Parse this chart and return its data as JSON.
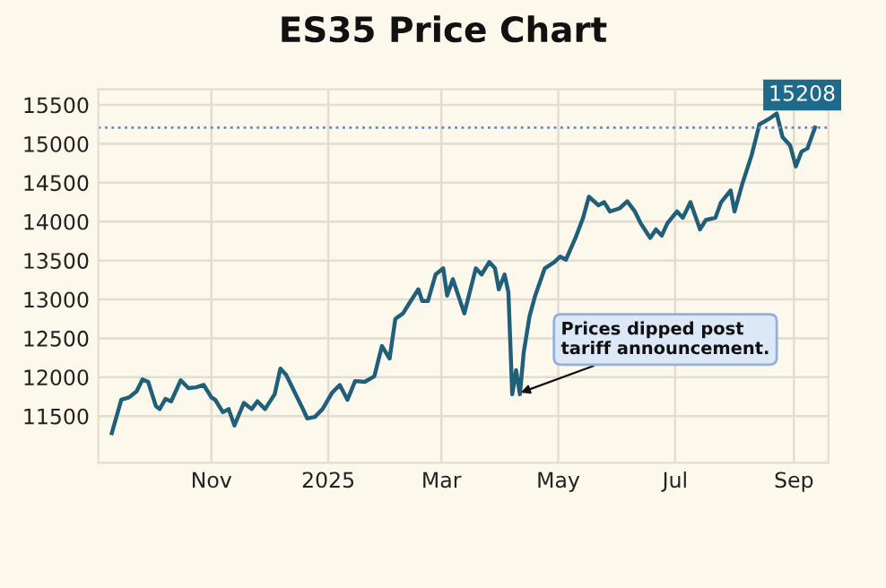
{
  "chart_data": {
    "type": "line",
    "title": "ES35 Price Chart",
    "x": [
      "2024-09-10",
      "2024-09-15",
      "2024-09-19",
      "2024-09-23",
      "2024-09-26",
      "2024-09-29",
      "2024-10-03",
      "2024-10-05",
      "2024-10-08",
      "2024-10-11",
      "2024-10-16",
      "2024-10-20",
      "2024-10-24",
      "2024-10-28",
      "2024-11-01",
      "2024-11-03",
      "2024-11-07",
      "2024-11-10",
      "2024-11-13",
      "2024-11-18",
      "2024-11-22",
      "2024-11-25",
      "2024-11-29",
      "2024-12-04",
      "2024-12-07",
      "2024-12-10",
      "2024-12-15",
      "2024-12-18",
      "2024-12-21",
      "2024-12-25",
      "2024-12-29",
      "2025-01-03",
      "2025-01-07",
      "2025-01-11",
      "2025-01-15",
      "2025-01-20",
      "2025-01-25",
      "2025-01-29",
      "2025-02-02",
      "2025-02-05",
      "2025-02-09",
      "2025-02-12",
      "2025-02-17",
      "2025-02-19",
      "2025-02-22",
      "2025-02-26",
      "2025-03-02",
      "2025-03-04",
      "2025-03-07",
      "2025-03-13",
      "2025-03-19",
      "2025-03-22",
      "2025-03-26",
      "2025-03-29",
      "2025-03-31",
      "2025-04-03",
      "2025-04-05",
      "2025-04-07",
      "2025-04-09",
      "2025-04-11",
      "2025-04-13",
      "2025-04-16",
      "2025-04-19",
      "2025-04-24",
      "2025-04-29",
      "2025-05-02",
      "2025-05-05",
      "2025-05-10",
      "2025-05-14",
      "2025-05-17",
      "2025-05-22",
      "2025-05-25",
      "2025-05-28",
      "2025-06-02",
      "2025-06-06",
      "2025-06-10",
      "2025-06-13",
      "2025-06-18",
      "2025-06-21",
      "2025-06-24",
      "2025-06-27",
      "2025-07-02",
      "2025-07-05",
      "2025-07-09",
      "2025-07-14",
      "2025-07-17",
      "2025-07-22",
      "2025-07-25",
      "2025-07-30",
      "2025-08-01",
      "2025-08-05",
      "2025-08-10",
      "2025-08-14",
      "2025-08-19",
      "2025-08-23",
      "2025-08-26",
      "2025-08-30",
      "2025-09-02",
      "2025-09-05",
      "2025-09-08",
      "2025-09-12"
    ],
    "series": [
      {
        "color": "#1f5f7a",
        "values": [
          11280,
          11710,
          11740,
          11820,
          11970,
          11940,
          11630,
          11590,
          11720,
          11690,
          11960,
          11860,
          11870,
          11900,
          11740,
          11710,
          11550,
          11590,
          11380,
          11670,
          11590,
          11690,
          11590,
          11780,
          12110,
          12030,
          11780,
          11630,
          11470,
          11490,
          11590,
          11800,
          11900,
          11710,
          11950,
          11940,
          12010,
          12400,
          12240,
          12750,
          12820,
          12940,
          13130,
          12980,
          12980,
          13320,
          13400,
          13050,
          13260,
          12820,
          13400,
          13320,
          13480,
          13400,
          13130,
          13320,
          13090,
          11780,
          12090,
          11780,
          12320,
          12780,
          13050,
          13400,
          13480,
          13550,
          13510,
          13790,
          14050,
          14320,
          14210,
          14250,
          14130,
          14170,
          14260,
          14130,
          13980,
          13790,
          13900,
          13820,
          13980,
          14130,
          14050,
          14250,
          13900,
          14020,
          14050,
          14250,
          14400,
          14130,
          14480,
          14860,
          15250,
          15320,
          15390,
          15090,
          14980,
          14710,
          14900,
          14940,
          15208
        ]
      }
    ],
    "xlim": [
      "2024-09-03",
      "2025-09-19"
    ],
    "xticks": [
      {
        "value": "2024-11-01",
        "label": "Nov"
      },
      {
        "value": "2025-01-01",
        "label": "2025"
      },
      {
        "value": "2025-03-01",
        "label": "Mar"
      },
      {
        "value": "2025-05-01",
        "label": "May"
      },
      {
        "value": "2025-07-01",
        "label": "Jul"
      },
      {
        "value": "2025-09-01",
        "label": "Sep"
      }
    ],
    "ylim": [
      10900,
      15700
    ],
    "yticks": [
      11500,
      12000,
      12500,
      13000,
      13500,
      14000,
      14500,
      15000,
      15500
    ],
    "grid": true,
    "line_style": "solid",
    "marker": "none",
    "ref_lines": [
      {
        "axis": "y",
        "value": 15208,
        "label": "15208",
        "color": "#5b8bd6",
        "line_style": "dotted"
      }
    ],
    "annotations": [
      {
        "text": "Prices dipped post\ntariff announcement.",
        "x": "2025-04-09",
        "y": 11780
      }
    ]
  }
}
